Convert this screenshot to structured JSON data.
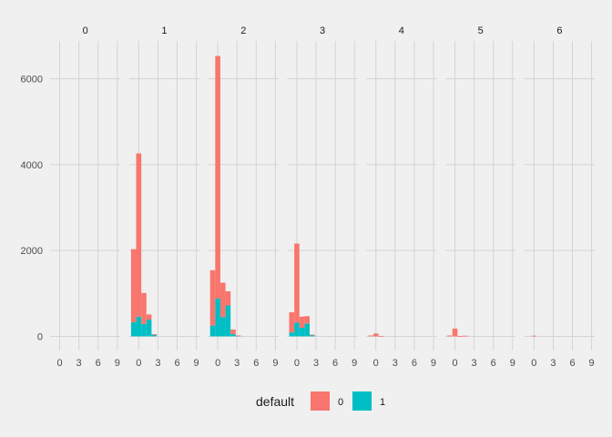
{
  "chart_data": {
    "type": "bar",
    "subtype": "stacked-histogram-faceted",
    "facet_labels": [
      "0",
      "1",
      "2",
      "3",
      "4",
      "5",
      "6"
    ],
    "x_ticks": [
      0,
      3,
      6,
      9
    ],
    "x_tick_labels": [
      "0",
      "3",
      "6",
      "9"
    ],
    "xlim": [
      -1.5,
      9.5
    ],
    "ylim": [
      -330,
      6880
    ],
    "y_ticks": [
      0,
      2000,
      4000,
      6000
    ],
    "y_tick_labels": [
      "0",
      "2000",
      "4000",
      "6000"
    ],
    "bin_width": 0.8,
    "colors": {
      "0": "#F8766D",
      "1": "#00BFC4"
    },
    "legend": {
      "title": "default",
      "entries": [
        "0",
        "1"
      ],
      "position": "bottom"
    },
    "series": [
      {
        "name": "0",
        "facets": [
          {
            "facet": "0",
            "bins": []
          },
          {
            "facet": "1",
            "bins": [
              {
                "x": -0.8,
                "value": 1700
              },
              {
                "x": 0.0,
                "value": 3800
              },
              {
                "x": 0.8,
                "value": 720
              },
              {
                "x": 1.6,
                "value": 120
              },
              {
                "x": 2.4,
                "value": 10
              }
            ]
          },
          {
            "facet": "2",
            "bins": [
              {
                "x": -0.8,
                "value": 1290
              },
              {
                "x": 0.0,
                "value": 5650
              },
              {
                "x": 0.8,
                "value": 800
              },
              {
                "x": 1.6,
                "value": 330
              },
              {
                "x": 2.4,
                "value": 110
              },
              {
                "x": 3.2,
                "value": 10
              }
            ]
          },
          {
            "facet": "3",
            "bins": [
              {
                "x": -0.8,
                "value": 470
              },
              {
                "x": 0.0,
                "value": 1840
              },
              {
                "x": 0.8,
                "value": 260
              },
              {
                "x": 1.6,
                "value": 170
              },
              {
                "x": 2.4,
                "value": 10
              }
            ]
          },
          {
            "facet": "4",
            "bins": [
              {
                "x": -0.8,
                "value": 20
              },
              {
                "x": 0.0,
                "value": 65
              },
              {
                "x": 0.8,
                "value": 5
              }
            ]
          },
          {
            "facet": "5",
            "bins": [
              {
                "x": -0.8,
                "value": 20
              },
              {
                "x": 0.0,
                "value": 180
              },
              {
                "x": 0.8,
                "value": 5
              },
              {
                "x": 1.6,
                "value": 15
              }
            ]
          },
          {
            "facet": "6",
            "bins": [
              {
                "x": 0.0,
                "value": 15
              }
            ]
          }
        ]
      },
      {
        "name": "1",
        "facets": [
          {
            "facet": "0",
            "bins": []
          },
          {
            "facet": "1",
            "bins": [
              {
                "x": -0.8,
                "value": 330
              },
              {
                "x": 0.0,
                "value": 460
              },
              {
                "x": 0.8,
                "value": 290
              },
              {
                "x": 1.6,
                "value": 390
              },
              {
                "x": 2.4,
                "value": 40
              }
            ]
          },
          {
            "facet": "2",
            "bins": [
              {
                "x": -0.8,
                "value": 250
              },
              {
                "x": 0.0,
                "value": 880
              },
              {
                "x": 0.8,
                "value": 450
              },
              {
                "x": 1.6,
                "value": 720
              },
              {
                "x": 2.4,
                "value": 50
              },
              {
                "x": 3.2,
                "value": 10
              }
            ]
          },
          {
            "facet": "3",
            "bins": [
              {
                "x": -0.8,
                "value": 90
              },
              {
                "x": 0.0,
                "value": 320
              },
              {
                "x": 0.8,
                "value": 200
              },
              {
                "x": 1.6,
                "value": 300
              },
              {
                "x": 2.4,
                "value": 30
              }
            ]
          },
          {
            "facet": "4",
            "bins": []
          },
          {
            "facet": "5",
            "bins": []
          },
          {
            "facet": "6",
            "bins": []
          }
        ]
      }
    ]
  }
}
